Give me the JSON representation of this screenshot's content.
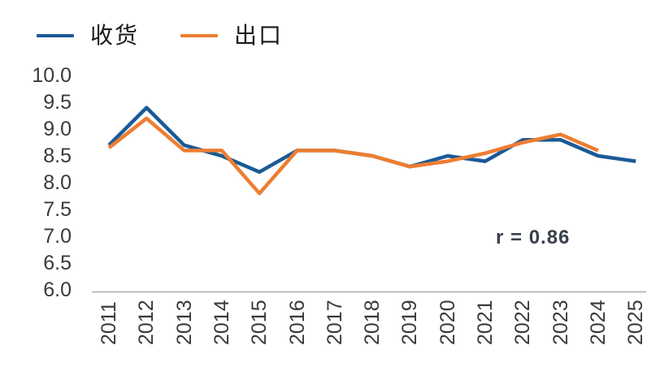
{
  "legend": {
    "items": [
      {
        "label": "收货",
        "color": "#1B5A96"
      },
      {
        "label": "出口",
        "color": "#ED7D31"
      }
    ]
  },
  "annotation": {
    "text": "r = 0.86"
  },
  "colors": {
    "series_blue": "#1B5A96",
    "series_orange": "#ED7D31",
    "axis_line": "#ADADAD",
    "tick_text": "#3A3A3A"
  },
  "chart_data": {
    "type": "line",
    "title": "",
    "xlabel": "",
    "ylabel": "",
    "categories": [
      "2011",
      "2012",
      "2013",
      "2014",
      "2015",
      "2016",
      "2017",
      "2018",
      "2019",
      "2020",
      "2021",
      "2022",
      "2023",
      "2024",
      "2025"
    ],
    "series": [
      {
        "name": "收货",
        "color": "#1B5A96",
        "values": [
          8.7,
          9.4,
          8.7,
          8.5,
          8.2,
          8.6,
          8.6,
          8.5,
          8.3,
          8.5,
          8.4,
          8.8,
          8.8,
          8.5,
          8.4
        ]
      },
      {
        "name": "出口",
        "color": "#ED7D31",
        "values": [
          8.65,
          9.2,
          8.6,
          8.6,
          7.8,
          8.6,
          8.6,
          8.5,
          8.3,
          8.4,
          8.55,
          8.75,
          8.9,
          8.6,
          null
        ]
      }
    ],
    "ylim": [
      6.0,
      10.0
    ],
    "yticks": [
      "10.0",
      "9.5",
      "9.0",
      "8.5",
      "8.0",
      "7.5",
      "7.0",
      "6.5",
      "6.0"
    ],
    "grid": false,
    "legend_position": "top-left",
    "annotation": "r = 0.86",
    "correlation": 0.86
  }
}
